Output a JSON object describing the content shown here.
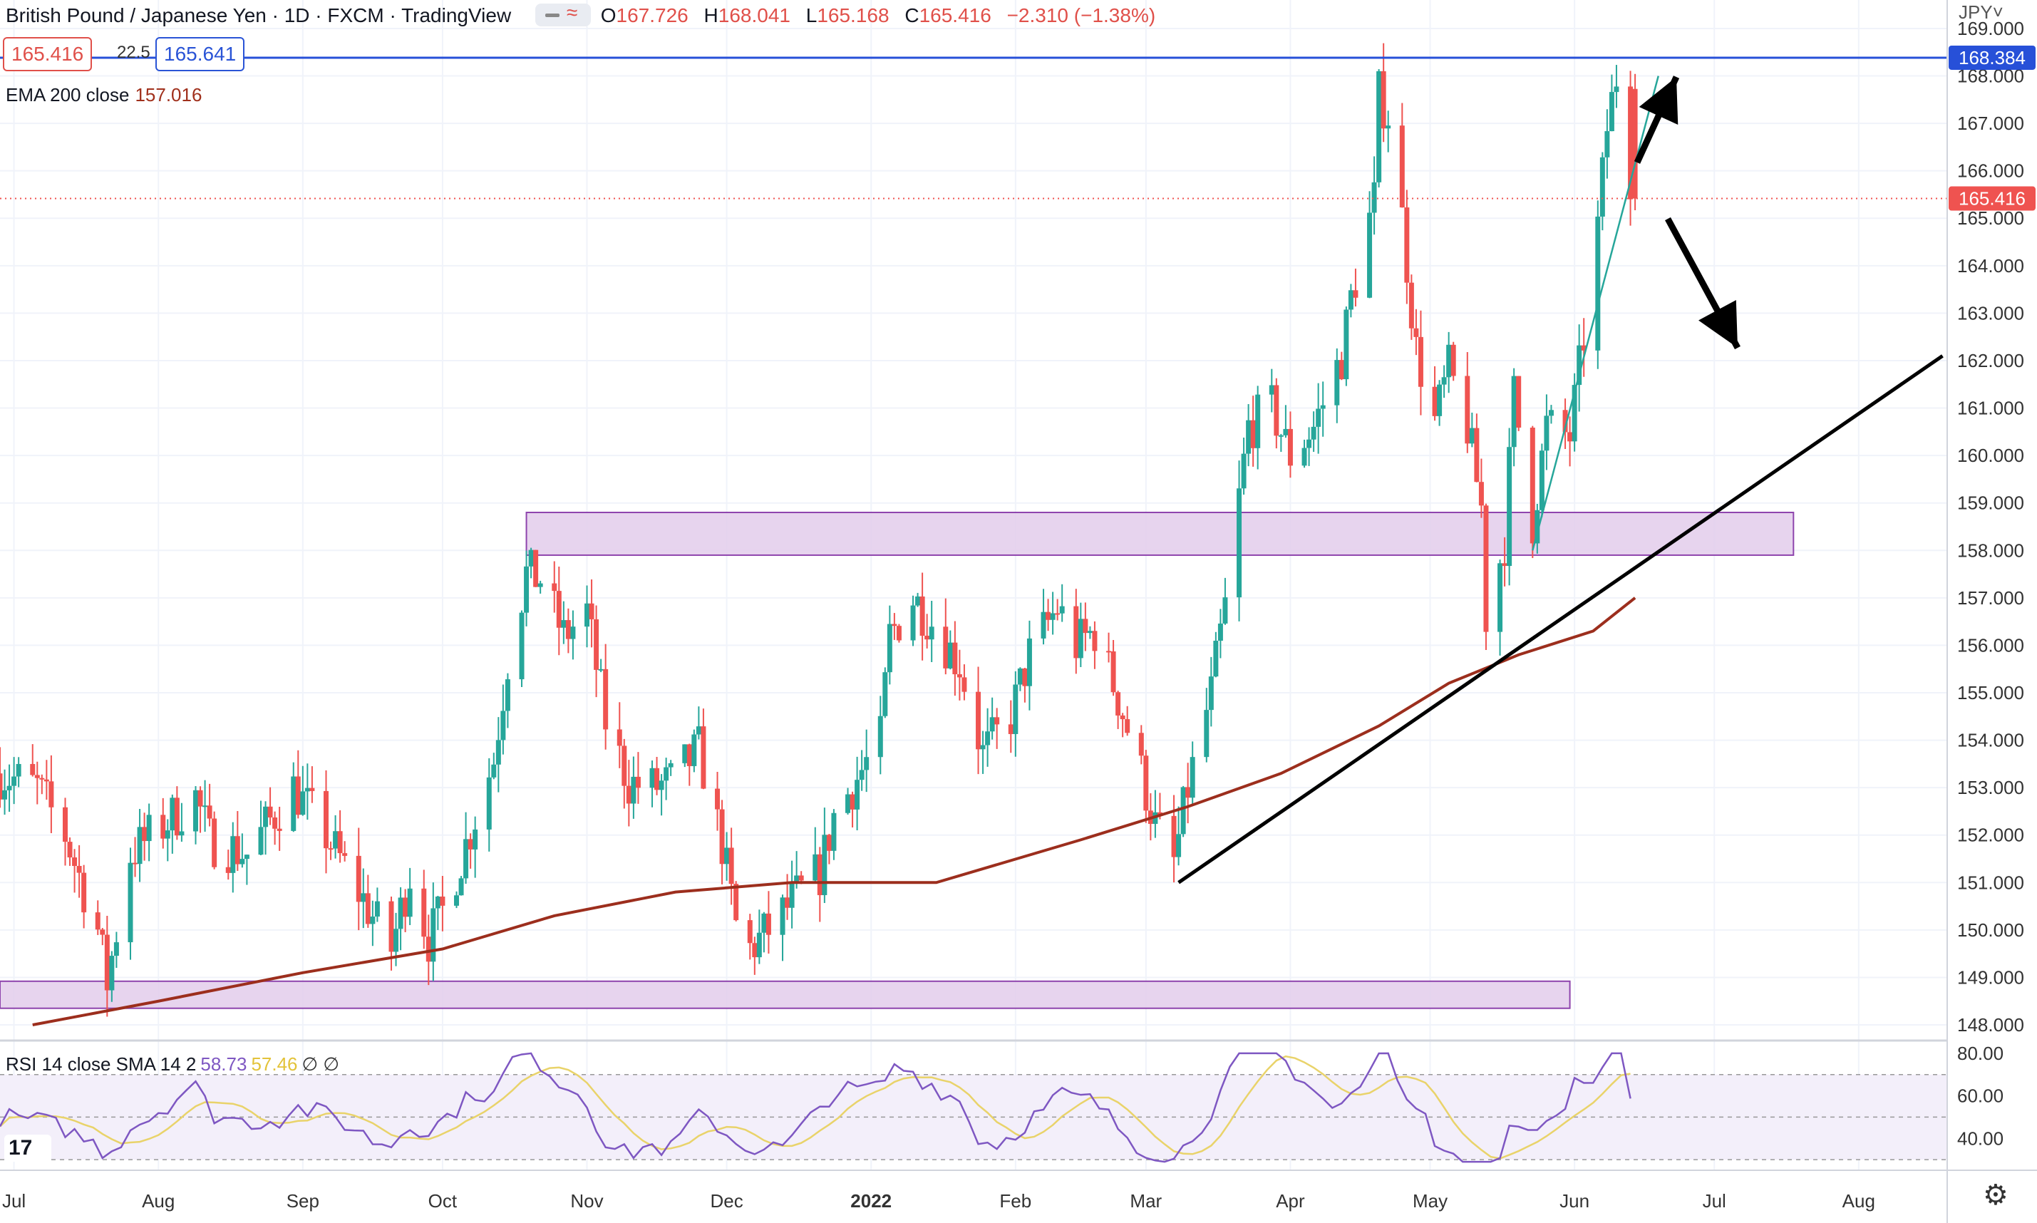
{
  "header": {
    "symbol": "British Pound / Japanese Yen · 1D · FXCM · TradingView",
    "o_label": "O",
    "o": "167.726",
    "h_label": "H",
    "h": "168.041",
    "l_label": "L",
    "l": "165.168",
    "c_label": "C",
    "c": "165.416",
    "change": "−2.310 (−1.38%)",
    "wave_symbol": "≈"
  },
  "quote": {
    "bid": "165.416",
    "spread": "22.5",
    "ask": "165.641"
  },
  "ema_legend": {
    "label": "EMA 200 close",
    "value": "157.016"
  },
  "rsi_legend": {
    "label": "RSI 14 close SMA 14 2",
    "rsi": "58.73",
    "sma": "57.46",
    "extra": "∅ ∅"
  },
  "currency": "JPY˅",
  "logo": "17",
  "settings_icon": "gear-icon",
  "colors": {
    "up": "#26a69a",
    "down": "#ef5350",
    "ema": "#9c2e1d",
    "resistance": "#2750d8",
    "zone_fill": "#e3cdeb",
    "zone_border": "#8e44ad",
    "rsi": "#7e57c2",
    "rsi_sma": "#e9d36a",
    "rsi_band": "#f3effa"
  },
  "chart_data": {
    "type": "candlestick",
    "title": "British Pound / Japanese Yen",
    "interval": "1D",
    "ylim": [
      147.7,
      169.6
    ],
    "y_ticks": [
      "169.000",
      "168.000",
      "167.000",
      "166.000",
      "165.000",
      "164.000",
      "163.000",
      "162.000",
      "161.000",
      "160.000",
      "159.000",
      "158.000",
      "157.000",
      "156.000",
      "155.000",
      "154.000",
      "153.000",
      "152.000",
      "151.000",
      "150.000",
      "149.000",
      "148.000"
    ],
    "x_ticks": [
      "Jul",
      "Aug",
      "Sep",
      "Oct",
      "Nov",
      "Dec",
      "2022",
      "Feb",
      "Mar",
      "Apr",
      "May",
      "Jun",
      "Jul",
      "Aug"
    ],
    "x_tick_dates": [
      "2021-07-01",
      "2021-08-01",
      "2021-09-01",
      "2021-10-01",
      "2021-11-01",
      "2021-12-01",
      "2022-01-01",
      "2022-02-01",
      "2022-03-01",
      "2022-04-01",
      "2022-05-01",
      "2022-06-01",
      "2022-07-01",
      "2022-08-01"
    ],
    "x_range": [
      "2021-06-28",
      "2022-08-20"
    ],
    "close_path": [
      [
        "2021-06-28",
        153.3
      ],
      [
        "2021-07-06",
        153.0
      ],
      [
        "2021-07-12",
        152.0
      ],
      [
        "2021-07-19",
        150.0
      ],
      [
        "2021-07-21",
        148.9
      ],
      [
        "2021-07-26",
        151.6
      ],
      [
        "2021-08-02",
        152.2
      ],
      [
        "2021-08-09",
        152.8
      ],
      [
        "2021-08-12",
        151.9
      ],
      [
        "2021-08-20",
        151.6
      ],
      [
        "2021-08-25",
        152.3
      ],
      [
        "2021-08-30",
        153.0
      ],
      [
        "2021-09-06",
        152.0
      ],
      [
        "2021-09-13",
        150.8
      ],
      [
        "2021-09-20",
        149.6
      ],
      [
        "2021-09-24",
        151.2
      ],
      [
        "2021-09-28",
        149.8
      ],
      [
        "2021-10-01",
        150.4
      ],
      [
        "2021-10-06",
        151.8
      ],
      [
        "2021-10-12",
        153.6
      ],
      [
        "2021-10-15",
        155.7
      ],
      [
        "2021-10-19",
        157.5
      ],
      [
        "2021-10-22",
        157.4
      ],
      [
        "2021-10-27",
        156.2
      ],
      [
        "2021-11-01",
        156.7
      ],
      [
        "2021-11-05",
        154.4
      ],
      [
        "2021-11-10",
        153.1
      ],
      [
        "2021-11-15",
        153.0
      ],
      [
        "2021-11-19",
        153.1
      ],
      [
        "2021-11-25",
        153.8
      ],
      [
        "2021-11-30",
        151.8
      ],
      [
        "2021-12-03",
        150.1
      ],
      [
        "2021-12-06",
        149.6
      ],
      [
        "2021-12-10",
        150.0
      ],
      [
        "2021-12-16",
        150.7
      ],
      [
        "2021-12-21",
        151.2
      ],
      [
        "2021-12-24",
        152.4
      ],
      [
        "2022-01-03",
        154.0
      ],
      [
        "2022-01-05",
        156.2
      ],
      [
        "2022-01-10",
        157.0
      ],
      [
        "2022-01-14",
        156.5
      ],
      [
        "2022-01-20",
        155.6
      ],
      [
        "2022-01-25",
        153.7
      ],
      [
        "2022-01-31",
        154.5
      ],
      [
        "2022-02-04",
        155.8
      ],
      [
        "2022-02-10",
        156.8
      ],
      [
        "2022-02-14",
        156.0
      ],
      [
        "2022-02-18",
        156.3
      ],
      [
        "2022-02-23",
        154.9
      ],
      [
        "2022-02-28",
        153.3
      ],
      [
        "2022-03-03",
        152.2
      ],
      [
        "2022-03-07",
        151.4
      ],
      [
        "2022-03-10",
        153.0
      ],
      [
        "2022-03-15",
        155.0
      ],
      [
        "2022-03-18",
        156.8
      ],
      [
        "2022-03-23",
        160.6
      ],
      [
        "2022-03-28",
        161.0
      ],
      [
        "2022-04-01",
        160.0
      ],
      [
        "2022-04-06",
        160.6
      ],
      [
        "2022-04-12",
        162.1
      ],
      [
        "2022-04-14",
        163.3
      ],
      [
        "2022-04-19",
        165.4
      ],
      [
        "2022-04-20",
        167.6
      ],
      [
        "2022-04-22",
        167.2
      ],
      [
        "2022-04-25",
        165.0
      ],
      [
        "2022-04-28",
        162.2
      ],
      [
        "2022-05-02",
        160.7
      ],
      [
        "2022-05-05",
        161.8
      ],
      [
        "2022-05-09",
        160.6
      ],
      [
        "2022-05-12",
        158.9
      ],
      [
        "2022-05-13",
        156.6
      ],
      [
        "2022-05-17",
        158.2
      ],
      [
        "2022-05-19",
        161.3
      ],
      [
        "2022-05-23",
        158.6
      ],
      [
        "2022-05-26",
        160.6
      ],
      [
        "2022-05-31",
        160.4
      ],
      [
        "2022-06-03",
        162.5
      ],
      [
        "2022-06-06",
        164.8
      ],
      [
        "2022-06-08",
        166.9
      ],
      [
        "2022-06-10",
        168.0
      ],
      [
        "2022-06-13",
        167.7
      ],
      [
        "2022-06-14",
        165.4
      ]
    ],
    "series": [
      {
        "name": "EMA 200 close",
        "type": "line",
        "points": [
          [
            "2021-07-05",
            148.0
          ],
          [
            "2021-08-01",
            148.5
          ],
          [
            "2021-09-01",
            149.1
          ],
          [
            "2021-10-01",
            149.6
          ],
          [
            "2021-10-25",
            150.3
          ],
          [
            "2021-11-20",
            150.8
          ],
          [
            "2021-12-15",
            151.0
          ],
          [
            "2022-01-15",
            151.0
          ],
          [
            "2022-02-15",
            151.9
          ],
          [
            "2022-03-10",
            152.6
          ],
          [
            "2022-03-30",
            153.3
          ],
          [
            "2022-04-20",
            154.3
          ],
          [
            "2022-05-05",
            155.2
          ],
          [
            "2022-05-20",
            155.8
          ],
          [
            "2022-06-05",
            156.3
          ],
          [
            "2022-06-14",
            157.0
          ]
        ]
      },
      {
        "name": "RSI 14 close",
        "type": "line",
        "panel": "rsi",
        "ylim": [
          25,
          85
        ],
        "y_ticks": [
          "80.00",
          "60.00",
          "40.00"
        ],
        "bands": [
          30,
          70
        ],
        "last": 58.73
      },
      {
        "name": "RSI SMA 14",
        "type": "line",
        "panel": "rsi",
        "last": 57.46
      }
    ],
    "annotations": {
      "resistance_line": 168.384,
      "last_price": 165.416,
      "zones": [
        {
          "from": "2021-10-19",
          "to": "2022-07-18",
          "low": 157.9,
          "high": 158.8
        },
        {
          "from": "2021-06-28",
          "to": "2022-05-31",
          "low": 148.35,
          "high": 148.92
        }
      ],
      "trendlines": [
        {
          "from": [
            "2022-03-08",
            151.0
          ],
          "to": [
            "2022-08-19",
            162.1
          ]
        },
        {
          "from": [
            "2022-05-23",
            158.0
          ],
          "to": [
            "2022-06-19",
            168.0
          ]
        }
      ],
      "arrows": [
        "up",
        "down"
      ]
    }
  }
}
